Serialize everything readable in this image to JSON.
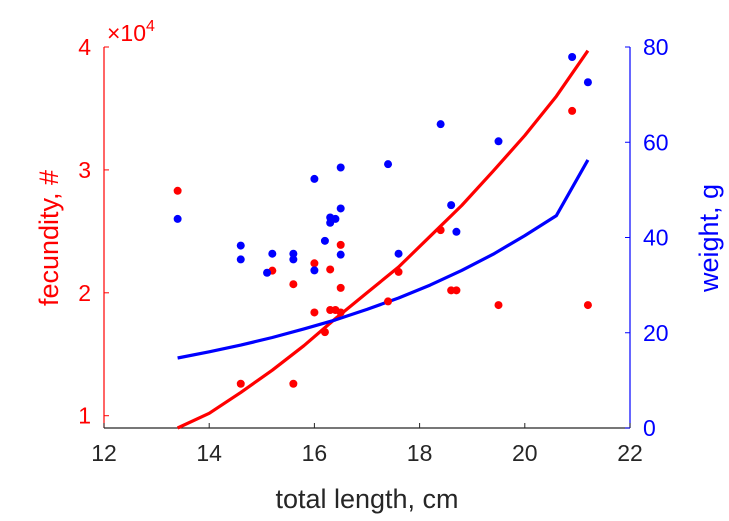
{
  "chart_data": {
    "type": "scatter",
    "xlabel": "total length, cm",
    "ylabel_left": "fecundity, #",
    "ylabel_right": "weight, g",
    "xlim": [
      12,
      22
    ],
    "ylim_left": [
      9000,
      40000
    ],
    "ylim_right": [
      0,
      80
    ],
    "x_ticks": [
      12,
      14,
      16,
      18,
      20,
      22
    ],
    "y_left_ticks": [
      1,
      2,
      3,
      4
    ],
    "y_left_multiplier": "×10",
    "y_left_multiplier_exp": "4",
    "y_right_ticks": [
      0,
      20,
      40,
      60,
      80
    ],
    "colors": {
      "fecundity": "#ff0000",
      "weight": "#0000ff",
      "axis": "#262626"
    },
    "series": [
      {
        "name": "fecundity",
        "axis": "left",
        "color": "#ff0000",
        "points": [
          [
            13.4,
            28300
          ],
          [
            14.6,
            12600
          ],
          [
            15.2,
            21800
          ],
          [
            15.6,
            20700
          ],
          [
            15.6,
            12600
          ],
          [
            16.0,
            22400
          ],
          [
            16.0,
            18400
          ],
          [
            16.2,
            16800
          ],
          [
            16.3,
            21900
          ],
          [
            16.3,
            18600
          ],
          [
            16.4,
            18600
          ],
          [
            16.5,
            23900
          ],
          [
            16.5,
            20400
          ],
          [
            16.5,
            18400
          ],
          [
            17.4,
            19300
          ],
          [
            17.6,
            21700
          ],
          [
            18.4,
            25100
          ],
          [
            18.6,
            20200
          ],
          [
            18.7,
            20200
          ],
          [
            19.5,
            19000
          ],
          [
            20.9,
            34800
          ],
          [
            21.2,
            19000
          ]
        ],
        "fit_curve": [
          [
            13.4,
            8600
          ],
          [
            14.0,
            10200
          ],
          [
            14.6,
            11900
          ],
          [
            15.2,
            13700
          ],
          [
            15.8,
            15700
          ],
          [
            16.4,
            17900
          ],
          [
            17.0,
            20000
          ],
          [
            17.6,
            22100
          ],
          [
            18.2,
            24600
          ],
          [
            18.8,
            27100
          ],
          [
            19.4,
            29900
          ],
          [
            20.0,
            32800
          ],
          [
            20.6,
            36000
          ],
          [
            21.2,
            39700
          ]
        ]
      },
      {
        "name": "weight",
        "axis": "right",
        "color": "#0000ff",
        "points": [
          [
            13.4,
            43.9
          ],
          [
            14.6,
            35.4
          ],
          [
            14.6,
            38.3
          ],
          [
            15.1,
            32.6
          ],
          [
            15.2,
            36.6
          ],
          [
            15.6,
            35.4
          ],
          [
            15.6,
            36.6
          ],
          [
            16.0,
            52.3
          ],
          [
            16.0,
            33.1
          ],
          [
            16.2,
            39.3
          ],
          [
            16.3,
            44.2
          ],
          [
            16.3,
            43.1
          ],
          [
            16.4,
            43.9
          ],
          [
            16.5,
            54.7
          ],
          [
            16.5,
            46.1
          ],
          [
            16.5,
            36.4
          ],
          [
            17.4,
            55.4
          ],
          [
            17.6,
            36.6
          ],
          [
            18.4,
            63.8
          ],
          [
            18.6,
            46.8
          ],
          [
            18.7,
            41.2
          ],
          [
            19.5,
            60.2
          ],
          [
            20.9,
            77.9
          ],
          [
            21.2,
            72.6
          ]
        ],
        "fit_curve": [
          [
            13.4,
            14.7
          ],
          [
            14.0,
            16.0
          ],
          [
            14.6,
            17.4
          ],
          [
            15.2,
            19.0
          ],
          [
            15.8,
            20.8
          ],
          [
            16.4,
            22.7
          ],
          [
            17.0,
            24.9
          ],
          [
            17.6,
            27.3
          ],
          [
            18.2,
            30.0
          ],
          [
            18.8,
            33.1
          ],
          [
            19.4,
            36.5
          ],
          [
            20.0,
            40.4
          ],
          [
            20.6,
            44.6
          ],
          [
            21.2,
            56.3
          ]
        ]
      }
    ]
  }
}
